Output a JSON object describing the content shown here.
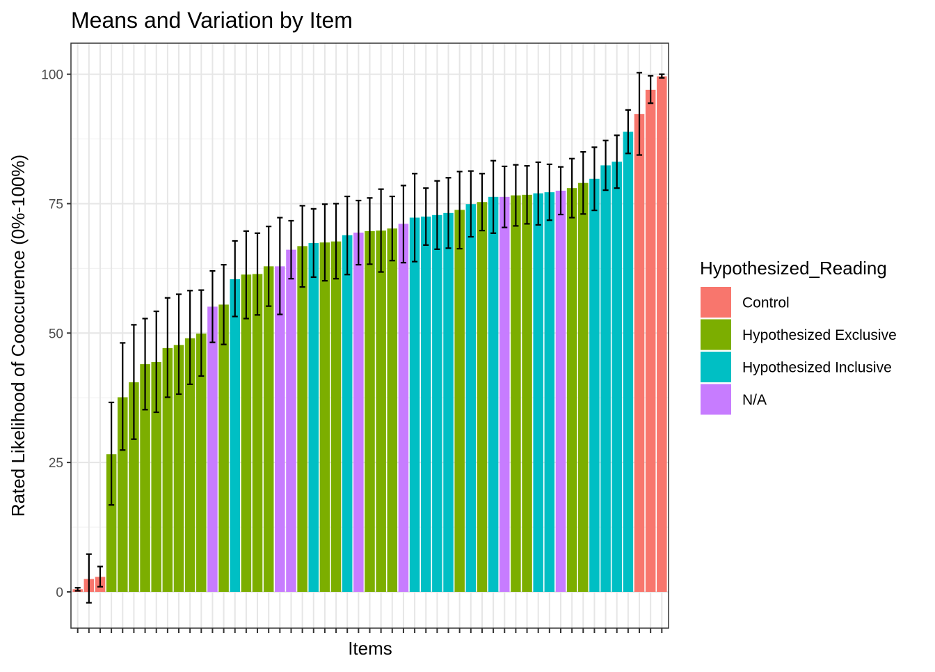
{
  "chart_data": {
    "type": "bar",
    "title": "Means and Variation by Item",
    "xlabel": "Items",
    "ylabel": "Rated Likelihood of Cooccurence (0%-100%)",
    "ylim": [
      -7,
      106
    ],
    "yticks": [
      0,
      25,
      50,
      75,
      100
    ],
    "grid": true,
    "error_bars": true,
    "legend": {
      "title": "Hypothesized_Reading",
      "placement": "right",
      "entries": [
        {
          "name": "Control",
          "color": "#F8766D"
        },
        {
          "name": "Hypothesized Exclusive",
          "color": "#7CAE00"
        },
        {
          "name": "Hypothesized Inclusive",
          "color": "#00BFC4"
        },
        {
          "name": "N/A",
          "color": "#C77CFF"
        }
      ]
    },
    "bars": [
      {
        "group": "Control",
        "value": 0.5,
        "lower": 0.2,
        "upper": 0.8
      },
      {
        "group": "Control",
        "value": 2.5,
        "lower": -2.1,
        "upper": 7.3
      },
      {
        "group": "Control",
        "value": 2.9,
        "lower": 1.0,
        "upper": 4.9
      },
      {
        "group": "Hypothesized Exclusive",
        "value": 26.6,
        "lower": 16.8,
        "upper": 36.6
      },
      {
        "group": "Hypothesized Exclusive",
        "value": 37.6,
        "lower": 27.4,
        "upper": 48.1
      },
      {
        "group": "Hypothesized Exclusive",
        "value": 40.5,
        "lower": 29.5,
        "upper": 51.6
      },
      {
        "group": "Hypothesized Exclusive",
        "value": 44.0,
        "lower": 35.2,
        "upper": 52.8
      },
      {
        "group": "Hypothesized Exclusive",
        "value": 44.4,
        "lower": 34.7,
        "upper": 54.2
      },
      {
        "group": "Hypothesized Exclusive",
        "value": 47.1,
        "lower": 37.6,
        "upper": 56.8
      },
      {
        "group": "Hypothesized Exclusive",
        "value": 47.7,
        "lower": 38.2,
        "upper": 57.5
      },
      {
        "group": "Hypothesized Exclusive",
        "value": 49.0,
        "lower": 40.1,
        "upper": 58.2
      },
      {
        "group": "Hypothesized Exclusive",
        "value": 49.9,
        "lower": 41.7,
        "upper": 58.3
      },
      {
        "group": "N/A",
        "value": 55.1,
        "lower": 48.2,
        "upper": 62.0
      },
      {
        "group": "Hypothesized Exclusive",
        "value": 55.5,
        "lower": 47.8,
        "upper": 63.2
      },
      {
        "group": "Hypothesized Inclusive",
        "value": 60.4,
        "lower": 53.2,
        "upper": 67.8
      },
      {
        "group": "Hypothesized Exclusive",
        "value": 61.3,
        "lower": 52.8,
        "upper": 69.7
      },
      {
        "group": "Hypothesized Exclusive",
        "value": 61.4,
        "lower": 53.5,
        "upper": 69.3
      },
      {
        "group": "Hypothesized Exclusive",
        "value": 62.9,
        "lower": 55.2,
        "upper": 70.6
      },
      {
        "group": "N/A",
        "value": 62.9,
        "lower": 53.6,
        "upper": 72.3
      },
      {
        "group": "N/A",
        "value": 66.1,
        "lower": 60.5,
        "upper": 71.7
      },
      {
        "group": "Hypothesized Exclusive",
        "value": 66.8,
        "lower": 58.9,
        "upper": 74.6
      },
      {
        "group": "Hypothesized Inclusive",
        "value": 67.4,
        "lower": 60.8,
        "upper": 74.0
      },
      {
        "group": "Hypothesized Exclusive",
        "value": 67.5,
        "lower": 60.1,
        "upper": 74.9
      },
      {
        "group": "Hypothesized Exclusive",
        "value": 67.7,
        "lower": 60.5,
        "upper": 75.0
      },
      {
        "group": "Hypothesized Inclusive",
        "value": 68.9,
        "lower": 61.3,
        "upper": 76.4
      },
      {
        "group": "N/A",
        "value": 69.4,
        "lower": 63.2,
        "upper": 75.6
      },
      {
        "group": "Hypothesized Exclusive",
        "value": 69.7,
        "lower": 63.3,
        "upper": 76.1
      },
      {
        "group": "Hypothesized Exclusive",
        "value": 69.8,
        "lower": 61.8,
        "upper": 77.8
      },
      {
        "group": "Hypothesized Exclusive",
        "value": 70.2,
        "lower": 64.0,
        "upper": 76.4
      },
      {
        "group": "N/A",
        "value": 71.1,
        "lower": 63.6,
        "upper": 78.5
      },
      {
        "group": "Hypothesized Inclusive",
        "value": 72.3,
        "lower": 63.8,
        "upper": 80.8
      },
      {
        "group": "Hypothesized Inclusive",
        "value": 72.5,
        "lower": 67.0,
        "upper": 78.0
      },
      {
        "group": "Hypothesized Inclusive",
        "value": 72.8,
        "lower": 66.2,
        "upper": 79.4
      },
      {
        "group": "Hypothesized Inclusive",
        "value": 73.2,
        "lower": 66.4,
        "upper": 80.0
      },
      {
        "group": "Hypothesized Exclusive",
        "value": 73.8,
        "lower": 66.3,
        "upper": 81.2
      },
      {
        "group": "Hypothesized Inclusive",
        "value": 74.9,
        "lower": 68.6,
        "upper": 81.3
      },
      {
        "group": "Hypothesized Exclusive",
        "value": 75.3,
        "lower": 69.8,
        "upper": 80.8
      },
      {
        "group": "Hypothesized Inclusive",
        "value": 76.3,
        "lower": 69.3,
        "upper": 83.3
      },
      {
        "group": "N/A",
        "value": 76.3,
        "lower": 70.4,
        "upper": 82.2
      },
      {
        "group": "Hypothesized Exclusive",
        "value": 76.6,
        "lower": 70.7,
        "upper": 82.5
      },
      {
        "group": "Hypothesized Exclusive",
        "value": 76.7,
        "lower": 71.1,
        "upper": 82.3
      },
      {
        "group": "Hypothesized Inclusive",
        "value": 77.0,
        "lower": 70.9,
        "upper": 83.0
      },
      {
        "group": "Hypothesized Inclusive",
        "value": 77.2,
        "lower": 71.8,
        "upper": 82.6
      },
      {
        "group": "N/A",
        "value": 77.5,
        "lower": 72.9,
        "upper": 82.1
      },
      {
        "group": "Hypothesized Exclusive",
        "value": 78.0,
        "lower": 72.3,
        "upper": 83.7
      },
      {
        "group": "Hypothesized Exclusive",
        "value": 79.0,
        "lower": 73.0,
        "upper": 85.0
      },
      {
        "group": "Hypothesized Inclusive",
        "value": 79.8,
        "lower": 73.7,
        "upper": 85.9
      },
      {
        "group": "Hypothesized Inclusive",
        "value": 82.4,
        "lower": 77.6,
        "upper": 87.2
      },
      {
        "group": "Hypothesized Inclusive",
        "value": 83.1,
        "lower": 78.0,
        "upper": 88.2
      },
      {
        "group": "Hypothesized Inclusive",
        "value": 88.9,
        "lower": 84.7,
        "upper": 93.1
      },
      {
        "group": "Control",
        "value": 92.3,
        "lower": 84.4,
        "upper": 100.3
      },
      {
        "group": "Control",
        "value": 97.0,
        "lower": 94.4,
        "upper": 99.7
      },
      {
        "group": "Control",
        "value": 99.6,
        "lower": 99.3,
        "upper": 100.0
      }
    ]
  }
}
